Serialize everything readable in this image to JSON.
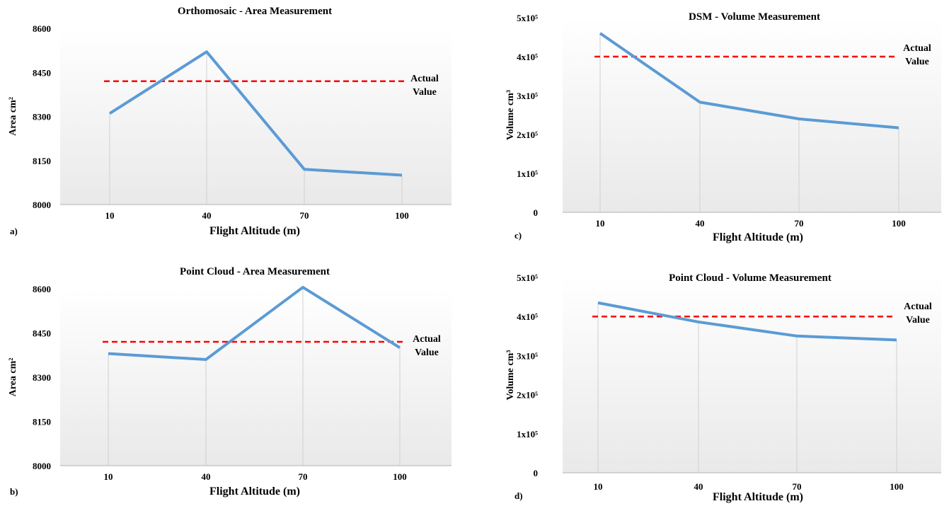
{
  "chart_data": [
    {
      "type": "line",
      "panel_label": "a)",
      "title": "Orthomosaic - Area Measurement",
      "xlabel": "Flight Altitude (m)",
      "ylabel": "Area cm²",
      "categories": [
        "10",
        "40",
        "70",
        "100"
      ],
      "yticks": [
        {
          "value": 8000,
          "label": "8000"
        },
        {
          "value": 8150,
          "label": "8150"
        },
        {
          "value": 8300,
          "label": "8300"
        },
        {
          "value": 8450,
          "label": "8450"
        },
        {
          "value": 8600,
          "label": "8600"
        }
      ],
      "ylim": [
        8000,
        8600
      ],
      "series": [
        {
          "values": [
            8310,
            8520,
            8120,
            8100
          ],
          "color": "#5b9bd5"
        }
      ],
      "reference_line": {
        "value": 8420,
        "label_line1": "Actual",
        "label_line2": "Value",
        "color": "#ff0000",
        "style": "dashed"
      },
      "grid": "vertical"
    },
    {
      "type": "line",
      "panel_label": "c)",
      "title": "DSM - Volume Measurement",
      "xlabel": "Flight Altitude (m)",
      "ylabel": "Volume cm³",
      "categories": [
        "10",
        "40",
        "70",
        "100"
      ],
      "yticks": [
        {
          "value": 0,
          "label": "0"
        },
        {
          "value": 100000,
          "label": "1x10⁵"
        },
        {
          "value": 200000,
          "label": "2x10⁵"
        },
        {
          "value": 300000,
          "label": "3x10⁵"
        },
        {
          "value": 400000,
          "label": "4x10⁵"
        },
        {
          "value": 500000,
          "label": "5x10⁵"
        }
      ],
      "ylim": [
        0,
        500000
      ],
      "series": [
        {
          "values": [
            460000,
            283000,
            240000,
            217000
          ],
          "color": "#5b9bd5"
        }
      ],
      "reference_line": {
        "value": 400000,
        "label_line1": "Actual",
        "label_line2": "Value",
        "color": "#ff0000",
        "style": "dashed"
      },
      "grid": "vertical"
    },
    {
      "type": "line",
      "panel_label": "b)",
      "title": "Point Cloud - Area Measurement",
      "xlabel": "Flight Altitude (m)",
      "ylabel": "Area cm²",
      "categories": [
        "10",
        "40",
        "70",
        "100"
      ],
      "yticks": [
        {
          "value": 8000,
          "label": "8000"
        },
        {
          "value": 8150,
          "label": "8150"
        },
        {
          "value": 8300,
          "label": "8300"
        },
        {
          "value": 8450,
          "label": "8450"
        },
        {
          "value": 8600,
          "label": "8600"
        }
      ],
      "ylim": [
        8000,
        8600
      ],
      "series": [
        {
          "values": [
            8380,
            8360,
            8605,
            8400
          ],
          "color": "#5b9bd5"
        }
      ],
      "reference_line": {
        "value": 8420,
        "label_line1": "Actual",
        "label_line2": "Value",
        "color": "#ff0000",
        "style": "dashed"
      },
      "grid": "vertical"
    },
    {
      "type": "line",
      "panel_label": "d)",
      "title": "Point Cloud - Volume Measurement",
      "xlabel": "Flight Altitude (m)",
      "ylabel": "Volume cm³",
      "categories": [
        "10",
        "40",
        "70",
        "100"
      ],
      "yticks": [
        {
          "value": 0,
          "label": "0"
        },
        {
          "value": 100000,
          "label": "1x10⁵"
        },
        {
          "value": 200000,
          "label": "2x10⁵"
        },
        {
          "value": 300000,
          "label": "3x10⁵"
        },
        {
          "value": 400000,
          "label": "4x10⁵"
        },
        {
          "value": 500000,
          "label": "5x10⁵"
        }
      ],
      "ylim": [
        0,
        500000
      ],
      "series": [
        {
          "values": [
            435000,
            386000,
            350000,
            340000
          ],
          "color": "#5b9bd5"
        }
      ],
      "reference_line": {
        "value": 400000,
        "label_line1": "Actual",
        "label_line2": "Value",
        "color": "#ff0000",
        "style": "dashed"
      },
      "grid": "vertical"
    }
  ]
}
